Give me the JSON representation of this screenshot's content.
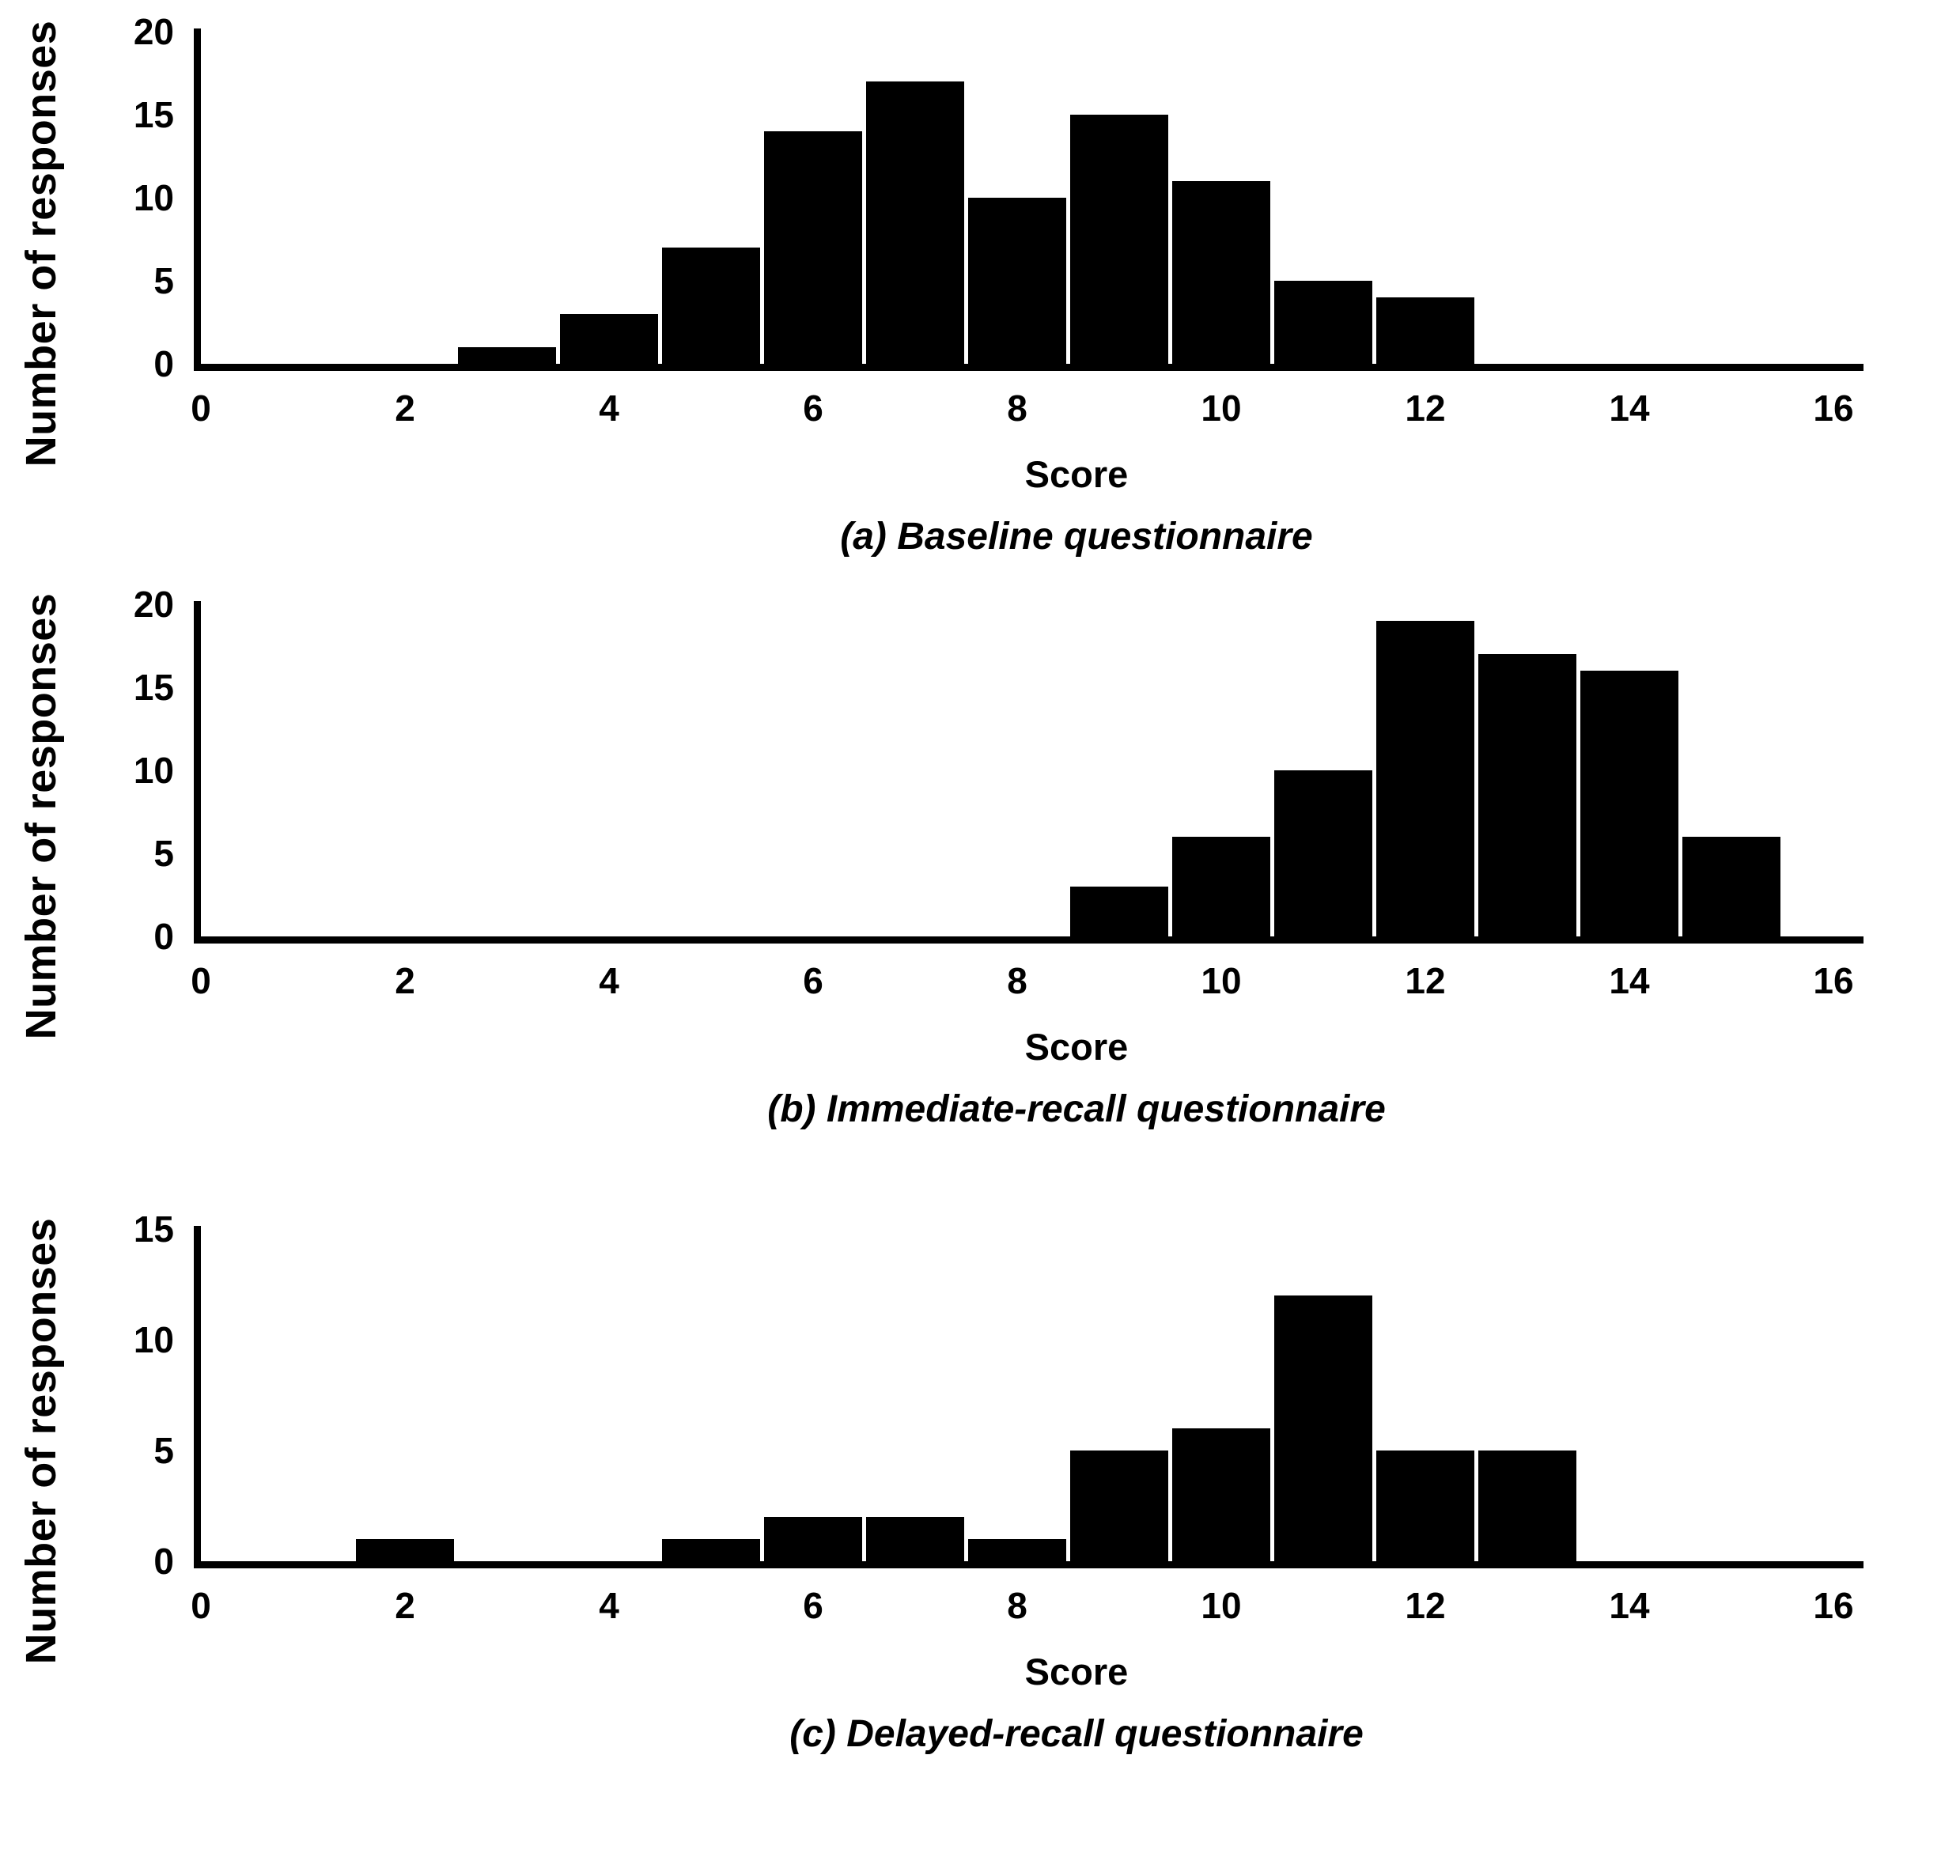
{
  "page": {
    "background": "#ffffff",
    "bar_color": "#000000",
    "axis_color": "#000000",
    "text_color": "#000000"
  },
  "chart_data": [
    {
      "type": "bar",
      "caption": "(a) Baseline questionnaire",
      "xlabel": "Score",
      "ylabel": "Number of responses",
      "xlim": [
        0,
        16
      ],
      "xticks": [
        0,
        2,
        4,
        6,
        8,
        10,
        12,
        14,
        16
      ],
      "ylim": [
        0,
        20
      ],
      "yticks": [
        0,
        5,
        10,
        15,
        20
      ],
      "grid": false,
      "bar_width": 1,
      "x": [
        3,
        4,
        5,
        6,
        7,
        8,
        9,
        10,
        11,
        12
      ],
      "values": [
        1,
        3,
        7,
        14,
        17,
        10,
        15,
        11,
        5,
        4
      ]
    },
    {
      "type": "bar",
      "caption": "(b) Immediate-recall questionnaire",
      "xlabel": "Score",
      "ylabel": "Number of responses",
      "xlim": [
        0,
        16
      ],
      "xticks": [
        0,
        2,
        4,
        6,
        8,
        10,
        12,
        14,
        16
      ],
      "ylim": [
        0,
        20
      ],
      "yticks": [
        0,
        5,
        10,
        15,
        20
      ],
      "grid": false,
      "bar_width": 1,
      "x": [
        9,
        10,
        11,
        12,
        13,
        14,
        15
      ],
      "values": [
        3,
        6,
        10,
        19,
        17,
        16,
        6
      ]
    },
    {
      "type": "bar",
      "caption": "(c) Delayed-recall questionnaire",
      "xlabel": "Score",
      "ylabel": "Number of responses",
      "xlim": [
        0,
        16
      ],
      "xticks": [
        0,
        2,
        4,
        6,
        8,
        10,
        12,
        14,
        16
      ],
      "ylim": [
        0,
        15
      ],
      "yticks": [
        0,
        5,
        10,
        15
      ],
      "grid": false,
      "bar_width": 1,
      "x": [
        2,
        5,
        6,
        7,
        8,
        9,
        10,
        11,
        12,
        13
      ],
      "values": [
        1,
        1,
        2,
        2,
        1,
        5,
        6,
        12,
        5,
        5
      ]
    }
  ]
}
